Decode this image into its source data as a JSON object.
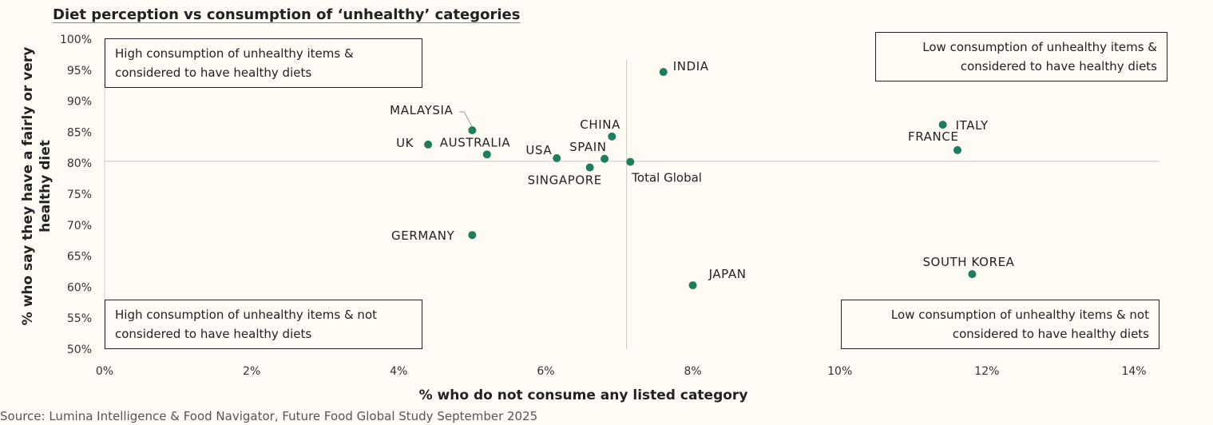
{
  "chart_data": {
    "type": "scatter",
    "title": "Diet perception vs consumption of ‘unhealthy’ categories",
    "xlabel": "% who do not consume any listed category",
    "ylabel": "% who say they have a fairly or very healthy diet",
    "xlim": [
      0,
      14
    ],
    "ylim": [
      50,
      100
    ],
    "x_ticks": [
      "0%",
      "2%",
      "4%",
      "6%",
      "8%",
      "10%",
      "12%",
      "14%"
    ],
    "y_ticks": [
      "50%",
      "55%",
      "60%",
      "65%",
      "70%",
      "75%",
      "80%",
      "85%",
      "90%",
      "95%",
      "100%"
    ],
    "grid": false,
    "reference_lines": {
      "x": 7.1,
      "y": 80.3
    },
    "point_color": "#1d7d5c",
    "points": [
      {
        "label": "INDIA",
        "x": 7.6,
        "y": 94.7
      },
      {
        "label": "MALAYSIA",
        "x": 5.0,
        "y": 85.3
      },
      {
        "label": "UK",
        "x": 4.4,
        "y": 83.0
      },
      {
        "label": "AUSTRALIA",
        "x": 5.2,
        "y": 81.4
      },
      {
        "label": "USA",
        "x": 6.15,
        "y": 80.8
      },
      {
        "label": "SPAIN",
        "x": 6.8,
        "y": 80.7
      },
      {
        "label": "CHINA",
        "x": 6.9,
        "y": 84.3
      },
      {
        "label": "SINGAPORE",
        "x": 6.6,
        "y": 79.3
      },
      {
        "label": "Total Global",
        "x": 7.15,
        "y": 80.2
      },
      {
        "label": "GERMANY",
        "x": 5.0,
        "y": 68.4
      },
      {
        "label": "JAPAN",
        "x": 8.0,
        "y": 60.3
      },
      {
        "label": "SOUTH KOREA",
        "x": 11.8,
        "y": 62.1
      },
      {
        "label": "ITALY",
        "x": 11.4,
        "y": 86.2
      },
      {
        "label": "FRANCE",
        "x": 11.6,
        "y": 82.1
      }
    ],
    "quadrants": {
      "top_left": "High consumption of unhealthy items & considered to have healthy diets",
      "top_right": "Low consumption of unhealthy items & considered to have healthy diets",
      "bottom_left": "High consumption of unhealthy items & not considered to have healthy diets",
      "bottom_right": "Low consumption of unhealthy items & not considered to have healthy diets"
    }
  },
  "source": "Source: Lumina Intelligence & Food Navigator, Future Food Global Study September 2025"
}
